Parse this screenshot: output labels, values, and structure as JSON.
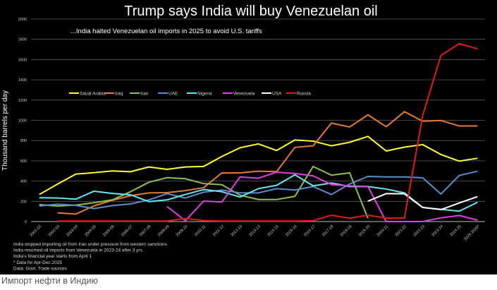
{
  "caption": "Импорт нефти в Индию",
  "chart_data": {
    "type": "line",
    "title": "Trump says India will buy Venezuelan oil",
    "subtitle": "...India halted Venezuelan oil imports in 2025 to avoid U.S. tariffs",
    "xlabel": "",
    "ylabel": "Thousand barrels per day",
    "ylim": [
      0,
      2000
    ],
    "yticks": [
      0,
      200,
      400,
      600,
      800,
      1000,
      1200,
      1400,
      1600,
      1800,
      2000
    ],
    "grid": true,
    "legend_position": "top-left, inside plot",
    "categories": [
      "2001-02",
      "2002-03",
      "2003-04",
      "2004-05",
      "2005-06",
      "2006-07",
      "2007-08",
      "2008-09",
      "2009-10",
      "2010-11",
      "2011-12",
      "2012-13",
      "2013-14",
      "2014-15",
      "2015-16",
      "2016-17",
      "2017-18",
      "2018-19",
      "2019-20",
      "2020-21",
      "2021-22",
      "2022-23",
      "2023-24",
      "2024-25",
      "2025-2026*"
    ],
    "series": [
      {
        "name": "Saudi Arabia",
        "color": "#ffff33",
        "values": [
          267,
          370,
          469,
          483,
          500,
          492,
          539,
          516,
          539,
          544,
          643,
          729,
          767,
          702,
          806,
          794,
          748,
          783,
          841,
          697,
          735,
          760,
          662,
          597,
          625
        ]
      },
      {
        "name": "Iraq",
        "color": "#e07b39",
        "values": [
          null,
          86,
          74,
          155,
          210,
          255,
          283,
          286,
          306,
          334,
          481,
          481,
          497,
          493,
          733,
          748,
          972,
          934,
          1054,
          937,
          1085,
          991,
          998,
          944,
          944
        ]
      },
      {
        "name": "Iran",
        "color": "#8cc152",
        "values": [
          167,
          153,
          163,
          186,
          214,
          295,
          388,
          434,
          423,
          375,
          364,
          260,
          218,
          218,
          249,
          544,
          458,
          481,
          33,
          null,
          null,
          null,
          null,
          null,
          null
        ]
      },
      {
        "name": "UAE",
        "color": "#5b8dc8",
        "values": [
          153,
          172,
          160,
          128,
          158,
          174,
          214,
          276,
          232,
          290,
          311,
          283,
          283,
          325,
          312,
          346,
          267,
          371,
          446,
          441,
          441,
          432,
          272,
          455,
          497
        ]
      },
      {
        "name": "Nigeria",
        "color": "#66e8f0",
        "values": [
          235,
          233,
          221,
          300,
          278,
          264,
          197,
          214,
          268,
          316,
          295,
          242,
          325,
          358,
          462,
          353,
          381,
          346,
          346,
          321,
          283,
          139,
          121,
          103,
          190
        ]
      },
      {
        "name": "Venezuela",
        "color": "#e040e0",
        "values": [
          null,
          null,
          null,
          null,
          null,
          null,
          null,
          149,
          8,
          202,
          193,
          441,
          428,
          488,
          475,
          451,
          365,
          353,
          346,
          0,
          0,
          0,
          37,
          60,
          14
        ]
      },
      {
        "name": "USA",
        "color": "#ffffff",
        "values": [
          null,
          null,
          null,
          null,
          null,
          null,
          null,
          null,
          null,
          null,
          null,
          null,
          null,
          null,
          null,
          null,
          null,
          null,
          202,
          276,
          274,
          139,
          118,
          183,
          246
        ]
      },
      {
        "name": "Russia",
        "color": "#e31a1c",
        "values": [
          null,
          5,
          5,
          5,
          5,
          5,
          5,
          5,
          30,
          10,
          5,
          5,
          5,
          5,
          5,
          9,
          63,
          33,
          63,
          35,
          35,
          1048,
          1641,
          1757,
          1706
        ]
      }
    ],
    "notes": [
      "India stopped importing oil from Iran under pressure from western sanctions",
      "India resumed oil imports from Venezuela in 2023-24 after 3 yrs",
      "India's financial year starts from April 1",
      "* Data for Apr-Dec 2025",
      "Data: Govt, Trade sources"
    ]
  }
}
